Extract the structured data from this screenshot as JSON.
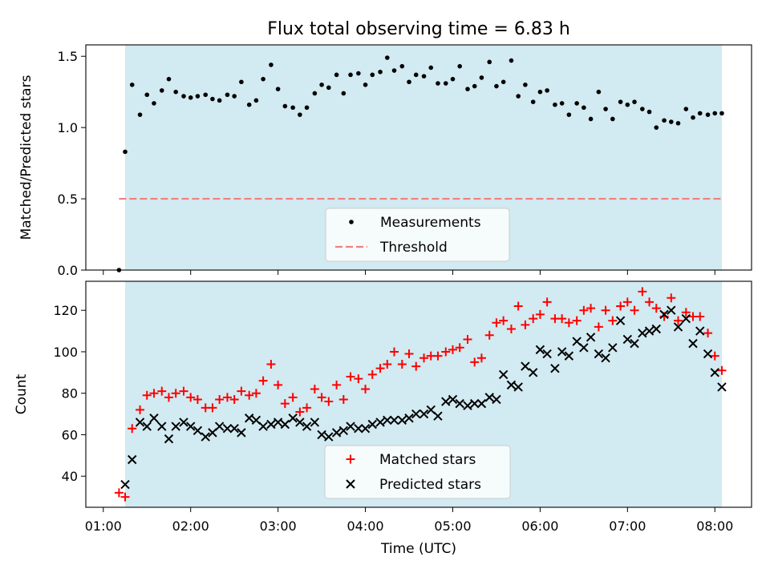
{
  "figure": {
    "title": "Flux total observing time = 6.83 h"
  },
  "chart_data": [
    {
      "type": "scatter",
      "panel": "top",
      "ylabel": "Matched/Predicted stars",
      "ylim": [
        0,
        1.58
      ],
      "y_ticks": [
        "0.0",
        "0.5",
        "1.0",
        "1.5"
      ],
      "x_ticks": [
        "01:00",
        "02:00",
        "03:00",
        "04:00",
        "05:00",
        "06:00",
        "07:00",
        "08:00"
      ],
      "xlim_hours": [
        0.8,
        8.42
      ],
      "shaded_span_hours": [
        1.25,
        8.08
      ],
      "shade_color": "#add8e6",
      "legend_placement": "lower center",
      "threshold": {
        "name": "Threshold",
        "value": 0.5,
        "x_range_hours": [
          1.18,
          8.08
        ],
        "color": "#f08080",
        "style": "dashed"
      },
      "series": [
        {
          "name": "Measurements",
          "color": "#000000",
          "marker": "dot",
          "x_hours": [
            1.18,
            1.25,
            1.33,
            1.42,
            1.5,
            1.58,
            1.67,
            1.75,
            1.83,
            1.92,
            2.0,
            2.08,
            2.17,
            2.25,
            2.33,
            2.42,
            2.5,
            2.58,
            2.67,
            2.75,
            2.83,
            2.92,
            3.0,
            3.08,
            3.17,
            3.25,
            3.33,
            3.42,
            3.5,
            3.58,
            3.67,
            3.75,
            3.83,
            3.92,
            4.0,
            4.08,
            4.17,
            4.25,
            4.33,
            4.42,
            4.5,
            4.58,
            4.67,
            4.75,
            4.83,
            4.92,
            5.0,
            5.08,
            5.17,
            5.25,
            5.33,
            5.42,
            5.5,
            5.58,
            5.67,
            5.75,
            5.83,
            5.92,
            6.0,
            6.08,
            6.17,
            6.25,
            6.33,
            6.42,
            6.5,
            6.58,
            6.67,
            6.75,
            6.83,
            6.92,
            7.0,
            7.08,
            7.17,
            7.25,
            7.33,
            7.42,
            7.5,
            7.58,
            7.67,
            7.75,
            7.83,
            7.92,
            8.0,
            8.08
          ],
          "values": [
            0.0,
            0.83,
            1.3,
            1.09,
            1.23,
            1.17,
            1.26,
            1.34,
            1.25,
            1.22,
            1.21,
            1.22,
            1.23,
            1.2,
            1.19,
            1.23,
            1.22,
            1.32,
            1.16,
            1.19,
            1.34,
            1.44,
            1.27,
            1.15,
            1.14,
            1.09,
            1.14,
            1.24,
            1.3,
            1.28,
            1.37,
            1.24,
            1.37,
            1.38,
            1.3,
            1.37,
            1.39,
            1.49,
            1.4,
            1.43,
            1.32,
            1.37,
            1.36,
            1.42,
            1.31,
            1.31,
            1.34,
            1.43,
            1.27,
            1.29,
            1.35,
            1.46,
            1.29,
            1.32,
            1.47,
            1.22,
            1.3,
            1.18,
            1.25,
            1.26,
            1.16,
            1.17,
            1.09,
            1.17,
            1.14,
            1.06,
            1.25,
            1.13,
            1.06,
            1.18,
            1.16,
            1.18,
            1.13,
            1.11,
            1.0,
            1.05,
            1.04,
            1.03,
            1.13,
            1.07,
            1.1,
            1.09,
            1.1,
            1.1
          ]
        }
      ]
    },
    {
      "type": "scatter",
      "panel": "bottom",
      "xlabel": "Time (UTC)",
      "ylabel": "Count",
      "ylim": [
        25,
        134
      ],
      "y_ticks": [
        "40",
        "60",
        "80",
        "100",
        "120"
      ],
      "x_ticks": [
        "01:00",
        "02:00",
        "03:00",
        "04:00",
        "05:00",
        "06:00",
        "07:00",
        "08:00"
      ],
      "xlim_hours": [
        0.8,
        8.42
      ],
      "shaded_span_hours": [
        1.25,
        8.08
      ],
      "shade_color": "#add8e6",
      "legend_placement": "lower center",
      "series": [
        {
          "name": "Matched stars",
          "color": "#ff0000",
          "marker": "plus",
          "x_hours": [
            1.18,
            1.25,
            1.33,
            1.42,
            1.5,
            1.58,
            1.67,
            1.75,
            1.83,
            1.92,
            2.0,
            2.08,
            2.17,
            2.25,
            2.33,
            2.42,
            2.5,
            2.58,
            2.67,
            2.75,
            2.83,
            2.92,
            3.0,
            3.08,
            3.17,
            3.25,
            3.33,
            3.42,
            3.5,
            3.58,
            3.67,
            3.75,
            3.83,
            3.92,
            4.0,
            4.08,
            4.17,
            4.25,
            4.33,
            4.42,
            4.5,
            4.58,
            4.67,
            4.75,
            4.83,
            4.92,
            5.0,
            5.08,
            5.17,
            5.25,
            5.33,
            5.42,
            5.5,
            5.58,
            5.67,
            5.75,
            5.83,
            5.92,
            6.0,
            6.08,
            6.17,
            6.25,
            6.33,
            6.42,
            6.5,
            6.58,
            6.67,
            6.75,
            6.83,
            6.92,
            7.0,
            7.08,
            7.17,
            7.25,
            7.33,
            7.42,
            7.5,
            7.58,
            7.67,
            7.75,
            7.83,
            7.92,
            8.0,
            8.08
          ],
          "values": [
            32,
            30,
            63,
            72,
            79,
            80,
            81,
            78,
            80,
            81,
            78,
            77,
            73,
            73,
            77,
            78,
            77,
            81,
            79,
            80,
            86,
            94,
            84,
            75,
            78,
            71,
            73,
            82,
            78,
            76,
            84,
            77,
            88,
            87,
            82,
            89,
            92,
            94,
            100,
            94,
            99,
            93,
            97,
            98,
            98,
            100,
            101,
            102,
            106,
            95,
            97,
            108,
            114,
            115,
            111,
            122,
            113,
            116,
            118,
            124,
            116,
            116,
            114,
            115,
            120,
            121,
            112,
            120,
            115,
            122,
            124,
            120,
            129,
            124,
            121,
            117,
            126,
            115,
            119,
            117,
            117,
            109,
            98,
            91
          ]
        },
        {
          "name": "Predicted stars",
          "color": "#000000",
          "marker": "x",
          "x_hours": [
            1.25,
            1.33,
            1.42,
            1.5,
            1.58,
            1.67,
            1.75,
            1.83,
            1.92,
            2.0,
            2.08,
            2.17,
            2.25,
            2.33,
            2.42,
            2.5,
            2.58,
            2.67,
            2.75,
            2.83,
            2.92,
            3.0,
            3.08,
            3.17,
            3.25,
            3.33,
            3.42,
            3.5,
            3.58,
            3.67,
            3.75,
            3.83,
            3.92,
            4.0,
            4.08,
            4.17,
            4.25,
            4.33,
            4.42,
            4.5,
            4.58,
            4.67,
            4.75,
            4.83,
            4.92,
            5.0,
            5.08,
            5.17,
            5.25,
            5.33,
            5.42,
            5.5,
            5.58,
            5.67,
            5.75,
            5.83,
            5.92,
            6.0,
            6.08,
            6.17,
            6.25,
            6.33,
            6.42,
            6.5,
            6.58,
            6.67,
            6.75,
            6.83,
            6.92,
            7.0,
            7.08,
            7.17,
            7.25,
            7.33,
            7.42,
            7.5,
            7.58,
            7.67,
            7.75,
            7.83,
            7.92,
            8.0,
            8.08
          ],
          "values": [
            36,
            48,
            66,
            64,
            68,
            64,
            58,
            64,
            66,
            64,
            62,
            59,
            61,
            64,
            63,
            63,
            61,
            68,
            67,
            64,
            65,
            66,
            65,
            68,
            66,
            64,
            66,
            60,
            59,
            61,
            62,
            64,
            63,
            63,
            65,
            66,
            67,
            67,
            67,
            68,
            70,
            70,
            72,
            69,
            76,
            77,
            75,
            74,
            75,
            75,
            78,
            77,
            89,
            84,
            83,
            93,
            90,
            101,
            99,
            92,
            100,
            98,
            105,
            102,
            107,
            99,
            97,
            102,
            115,
            106,
            104,
            109,
            110,
            111,
            118,
            120,
            112,
            116,
            104,
            110,
            99,
            90,
            83
          ]
        }
      ]
    }
  ]
}
